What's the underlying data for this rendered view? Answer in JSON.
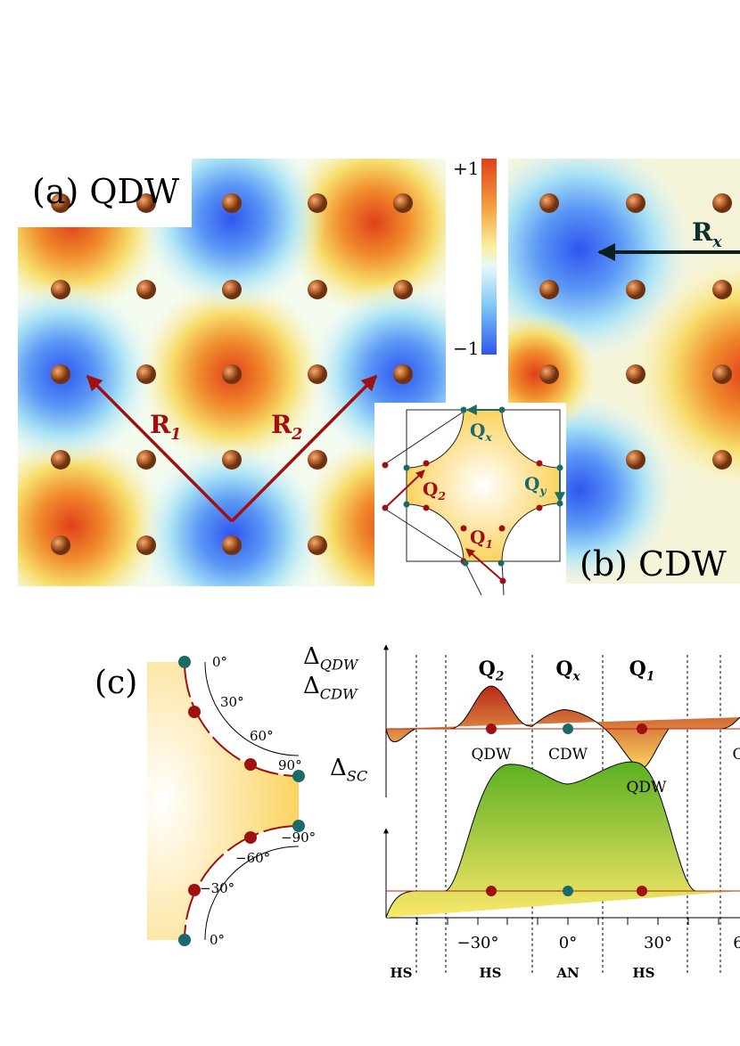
{
  "panel_a": {
    "label": "(a) QDW",
    "colorbar": {
      "max": "+1",
      "min": "−1"
    },
    "vectors": [
      {
        "main": "R",
        "sub": "1"
      },
      {
        "main": "R",
        "sub": "2"
      }
    ]
  },
  "panel_b": {
    "label": "(b) CDW",
    "vector": {
      "main": "R",
      "sub": "x"
    }
  },
  "inset": {
    "labels": [
      {
        "main": "Q",
        "sub": "x"
      },
      {
        "main": "Q",
        "sub": "y"
      },
      {
        "main": "Q",
        "sub": "2"
      },
      {
        "main": "Q",
        "sub": "1"
      }
    ]
  },
  "panel_c": {
    "label": "(c)",
    "angles_top": [
      "0°",
      "30°",
      "60°",
      "90°"
    ],
    "angles_bottom": [
      "−90°",
      "−60°",
      "−30°",
      "0°"
    ],
    "plot_top": {
      "ylabels": [
        {
          "main": "Δ",
          "sub": "QDW"
        },
        {
          "main": "Δ",
          "sub": "CDW"
        }
      ],
      "peak_labels": [
        {
          "main": "Q",
          "sub": "2"
        },
        {
          "main": "Q",
          "sub": "x"
        },
        {
          "main": "Q",
          "sub": "1"
        }
      ],
      "point_labels": [
        "QDW",
        "CDW",
        "QDW",
        "C"
      ]
    },
    "plot_bottom": {
      "ylabel": {
        "main": "Δ",
        "sub": "SC"
      }
    },
    "xticks": [
      "−30°",
      "0°",
      "30°",
      "6"
    ],
    "regions": [
      "HS",
      "HS",
      "AN",
      "HS"
    ]
  }
}
